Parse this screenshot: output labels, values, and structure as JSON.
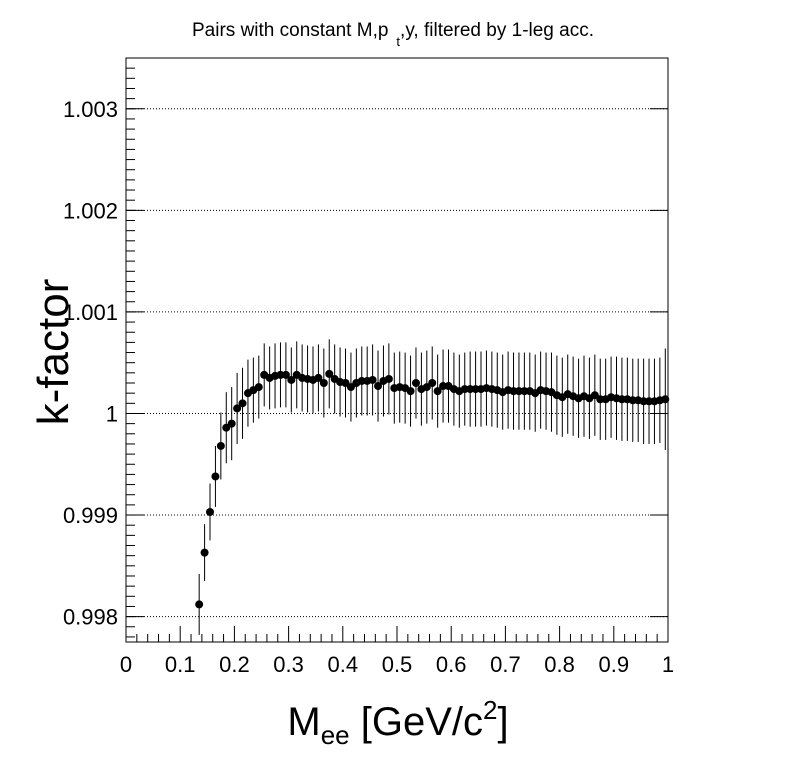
{
  "chart_data": {
    "type": "scatter",
    "title": {
      "prefix": "Pairs with constant M,p",
      "subscript": "t",
      "suffix": ",y, filtered by 1-leg acc."
    },
    "xlabel": {
      "main": "M",
      "subscript": "ee",
      "unit_prefix": " [GeV/c",
      "superscript": "2",
      "unit_suffix": "]"
    },
    "ylabel": "k-factor",
    "xlim": [
      0,
      1
    ],
    "ylim": [
      0.99775,
      1.0035
    ],
    "x_ticks": [
      "0",
      "0.1",
      "0.2",
      "0.3",
      "0.4",
      "0.5",
      "0.6",
      "0.7",
      "0.8",
      "0.9",
      "1"
    ],
    "y_ticks": [
      "0.998",
      "0.999",
      "1",
      "1.001",
      "1.002",
      "1.003"
    ],
    "grid": {
      "x": false,
      "y": true,
      "style": "dotted"
    },
    "series": [
      {
        "marker": "filled-circle",
        "color": "#000000",
        "x": [
          0.135,
          0.145,
          0.155,
          0.165,
          0.175,
          0.185,
          0.195,
          0.205,
          0.215,
          0.225,
          0.235,
          0.245,
          0.255,
          0.265,
          0.275,
          0.285,
          0.295,
          0.305,
          0.315,
          0.325,
          0.335,
          0.345,
          0.355,
          0.365,
          0.375,
          0.385,
          0.395,
          0.405,
          0.415,
          0.425,
          0.435,
          0.445,
          0.455,
          0.465,
          0.475,
          0.485,
          0.495,
          0.505,
          0.515,
          0.525,
          0.535,
          0.545,
          0.555,
          0.565,
          0.575,
          0.585,
          0.595,
          0.605,
          0.615,
          0.625,
          0.635,
          0.645,
          0.655,
          0.665,
          0.675,
          0.685,
          0.695,
          0.705,
          0.715,
          0.725,
          0.735,
          0.745,
          0.755,
          0.765,
          0.775,
          0.785,
          0.795,
          0.805,
          0.815,
          0.825,
          0.835,
          0.845,
          0.855,
          0.865,
          0.875,
          0.885,
          0.895,
          0.905,
          0.915,
          0.925,
          0.935,
          0.945,
          0.955,
          0.965,
          0.975,
          0.985,
          0.995
        ],
        "y": [
          0.99812,
          0.99863,
          0.99903,
          0.99938,
          0.99968,
          0.99986,
          0.9999,
          1.00005,
          1.0001,
          1.0002,
          1.00023,
          1.00026,
          1.00038,
          1.00035,
          1.00037,
          1.00038,
          1.00038,
          1.00033,
          1.00038,
          1.00035,
          1.00034,
          1.00033,
          1.00035,
          1.0003,
          1.00039,
          1.00034,
          1.00031,
          1.0003,
          1.00026,
          1.0003,
          1.00032,
          1.00032,
          1.00033,
          1.00027,
          1.00032,
          1.00034,
          1.00025,
          1.00026,
          1.00025,
          1.00022,
          1.0003,
          1.00024,
          1.00026,
          1.0003,
          1.00022,
          1.00027,
          1.00027,
          1.00024,
          1.00022,
          1.00024,
          1.00024,
          1.00024,
          1.00024,
          1.00025,
          1.00024,
          1.00023,
          1.00021,
          1.00023,
          1.00022,
          1.00022,
          1.00022,
          1.00022,
          1.0002,
          1.00023,
          1.00022,
          1.00021,
          1.00018,
          1.00016,
          1.00019,
          1.00017,
          1.00015,
          1.00017,
          1.00015,
          1.00018,
          1.00014,
          1.00014,
          1.00016,
          1.00015,
          1.00014,
          1.00014,
          1.00013,
          1.00013,
          1.00012,
          1.00012,
          1.00012,
          1.00013,
          1.00014
        ],
        "y_err": [
          0.0003,
          0.00028,
          0.00028,
          0.0003,
          0.00033,
          0.00035,
          0.00036,
          0.00035,
          0.00035,
          0.00033,
          0.00032,
          0.00031,
          0.00031,
          0.00031,
          0.00032,
          0.00032,
          0.00032,
          0.00032,
          0.00033,
          0.00033,
          0.00033,
          0.00033,
          0.00033,
          0.00034,
          0.00034,
          0.00034,
          0.00034,
          0.00034,
          0.00034,
          0.00034,
          0.00034,
          0.00034,
          0.00035,
          0.00035,
          0.00035,
          0.00035,
          0.00035,
          0.00035,
          0.00035,
          0.00035,
          0.00035,
          0.00036,
          0.00036,
          0.00036,
          0.00036,
          0.00036,
          0.00036,
          0.00036,
          0.00036,
          0.00036,
          0.00037,
          0.00037,
          0.00037,
          0.00037,
          0.00037,
          0.00037,
          0.00037,
          0.00038,
          0.00038,
          0.00038,
          0.00038,
          0.00038,
          0.00038,
          0.00038,
          0.00038,
          0.00039,
          0.00039,
          0.00039,
          0.00039,
          0.00039,
          0.00039,
          0.0004,
          0.0004,
          0.0004,
          0.0004,
          0.0004,
          0.0004,
          0.00041,
          0.00041,
          0.00041,
          0.00041,
          0.00041,
          0.00042,
          0.00042,
          0.00042,
          0.00042,
          0.0005
        ]
      }
    ]
  }
}
